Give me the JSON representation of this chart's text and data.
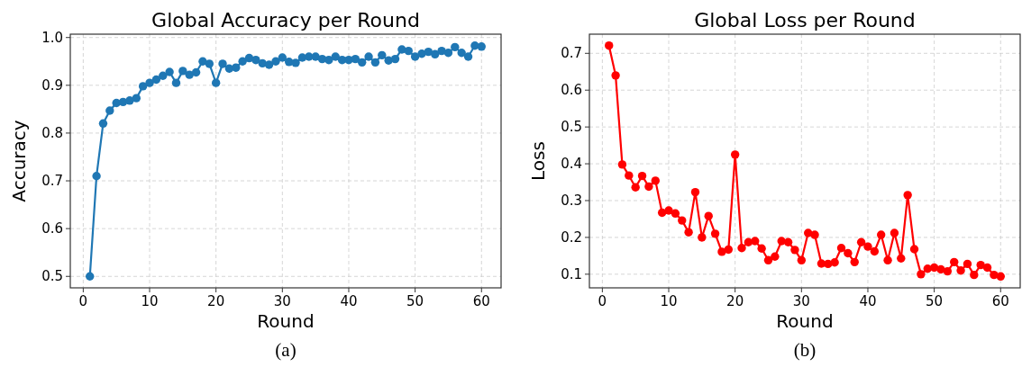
{
  "chart_data": [
    {
      "type": "line",
      "title": "Global Accuracy per Round",
      "xlabel": "Round",
      "ylabel": "Accuracy",
      "annotations": [
        "(a)"
      ],
      "x": [
        1,
        2,
        3,
        4,
        5,
        6,
        7,
        8,
        9,
        10,
        11,
        12,
        13,
        14,
        15,
        16,
        17,
        18,
        19,
        20,
        21,
        22,
        23,
        24,
        25,
        26,
        27,
        28,
        29,
        30,
        31,
        32,
        33,
        34,
        35,
        36,
        37,
        38,
        39,
        40,
        41,
        42,
        43,
        44,
        45,
        46,
        47,
        48,
        49,
        50,
        51,
        52,
        53,
        54,
        55,
        56,
        57,
        58,
        59,
        60
      ],
      "series": [
        {
          "color": "#1f77b4",
          "values": [
            0.5,
            0.71,
            0.82,
            0.847,
            0.863,
            0.865,
            0.868,
            0.873,
            0.898,
            0.905,
            0.912,
            0.92,
            0.928,
            0.905,
            0.93,
            0.922,
            0.927,
            0.95,
            0.945,
            0.905,
            0.945,
            0.935,
            0.937,
            0.95,
            0.957,
            0.953,
            0.946,
            0.943,
            0.95,
            0.958,
            0.949,
            0.947,
            0.958,
            0.96,
            0.96,
            0.955,
            0.953,
            0.96,
            0.953,
            0.953,
            0.955,
            0.948,
            0.96,
            0.948,
            0.963,
            0.952,
            0.955,
            0.975,
            0.972,
            0.96,
            0.966,
            0.97,
            0.965,
            0.972,
            0.968,
            0.98,
            0.968,
            0.96,
            0.983,
            0.981
          ]
        }
      ],
      "xlim": [
        -1.95,
        62.95
      ],
      "xticks": [
        0,
        10,
        20,
        30,
        40,
        50,
        60
      ],
      "ylim": [
        0.476,
        1.007
      ],
      "yticks": [
        {
          "value": 0.5,
          "label": "0.5"
        },
        {
          "value": 0.6,
          "label": "0.6"
        },
        {
          "value": 0.7,
          "label": "0.7"
        },
        {
          "value": 0.8,
          "label": "0.8"
        },
        {
          "value": 0.9,
          "label": "0.9"
        },
        {
          "value": 1.0,
          "label": "1.0"
        }
      ],
      "grid": true,
      "marker": "circle",
      "line_style": "solid"
    },
    {
      "type": "line",
      "title": "Global Loss per Round",
      "xlabel": "Round",
      "ylabel": "Loss",
      "annotations": [
        "(b)"
      ],
      "x": [
        1,
        2,
        3,
        4,
        5,
        6,
        7,
        8,
        9,
        10,
        11,
        12,
        13,
        14,
        15,
        16,
        17,
        18,
        19,
        20,
        21,
        22,
        23,
        24,
        25,
        26,
        27,
        28,
        29,
        30,
        31,
        32,
        33,
        34,
        35,
        36,
        37,
        38,
        39,
        40,
        41,
        42,
        43,
        44,
        45,
        46,
        47,
        48,
        49,
        50,
        51,
        52,
        53,
        54,
        55,
        56,
        57,
        58,
        59,
        60
      ],
      "series": [
        {
          "color": "#ff0000",
          "values": [
            0.721,
            0.64,
            0.398,
            0.368,
            0.336,
            0.367,
            0.338,
            0.354,
            0.267,
            0.273,
            0.265,
            0.246,
            0.214,
            0.323,
            0.2,
            0.258,
            0.21,
            0.161,
            0.167,
            0.425,
            0.171,
            0.187,
            0.19,
            0.17,
            0.138,
            0.148,
            0.19,
            0.187,
            0.166,
            0.138,
            0.212,
            0.207,
            0.129,
            0.128,
            0.132,
            0.171,
            0.157,
            0.133,
            0.187,
            0.175,
            0.162,
            0.207,
            0.138,
            0.212,
            0.143,
            0.315,
            0.168,
            0.1,
            0.115,
            0.118,
            0.113,
            0.108,
            0.133,
            0.11,
            0.128,
            0.098,
            0.125,
            0.118,
            0.098,
            0.094
          ]
        }
      ],
      "xlim": [
        -1.95,
        62.95
      ],
      "xticks": [
        0,
        10,
        20,
        30,
        40,
        50,
        60
      ],
      "ylim": [
        0.063,
        0.752
      ],
      "yticks": [
        0.1,
        0.2,
        0.3,
        0.4,
        0.5,
        0.6,
        0.7
      ],
      "grid": true,
      "marker": "circle",
      "line_style": "solid"
    }
  ]
}
